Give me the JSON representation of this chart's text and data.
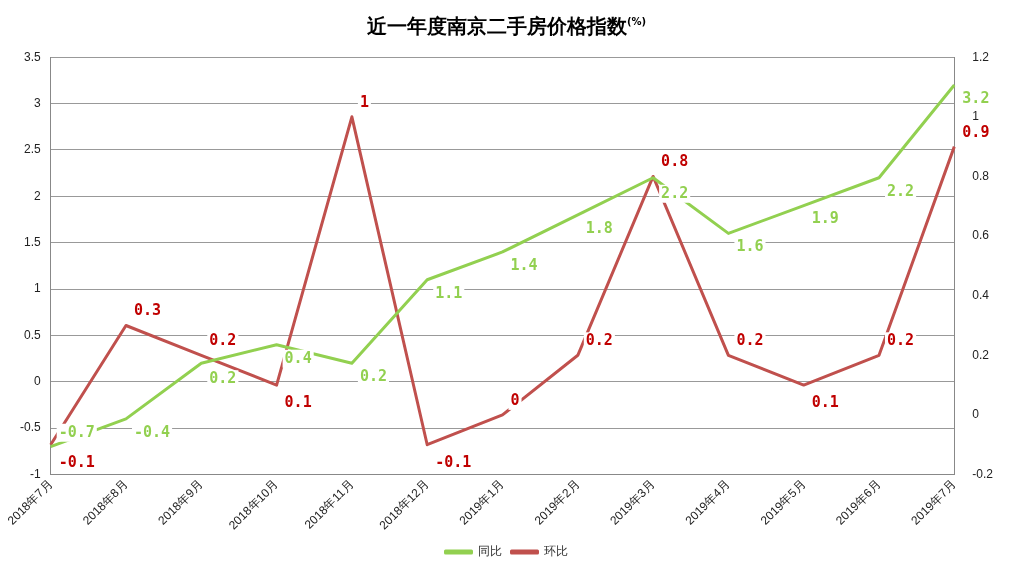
{
  "chart_data": {
    "type": "line",
    "title": "近一年度南京二手房价格指数$^{(%)}$",
    "categories": [
      "2018年7月",
      "2018年8月",
      "2018年9月",
      "2018年10月",
      "2018年11月",
      "2018年12月",
      "2019年1月",
      "2019年2月",
      "2019年3月",
      "2019年4月",
      "2019年5月",
      "2019年6月",
      "2019年7月"
    ],
    "series": [
      {
        "name": "同比",
        "color": "#92d050",
        "values": [
          -0.7,
          -0.4,
          0.2,
          0.4,
          0.2,
          1.1,
          1.4,
          1.8,
          2.2,
          1.6,
          1.9,
          2.2,
          3.2
        ]
      },
      {
        "name": "环比",
        "color": "#c0504d",
        "axis": "y2",
        "values": [
          -0.1,
          0.3,
          0.2,
          0.1,
          1,
          -0.1,
          0,
          0.2,
          0.8,
          0.2,
          0.1,
          0.2,
          0.9
        ]
      }
    ],
    "ylim": [
      -1,
      3.5
    ],
    "yticks": [
      -1,
      -0.5,
      0,
      0.5,
      1,
      1.5,
      2,
      2.5,
      3,
      3.5
    ],
    "y2lim": [
      -0.2,
      1.2
    ],
    "y2ticks": [
      -0.2,
      0,
      0.2,
      0.4,
      0.6,
      0.8,
      1,
      1.2
    ],
    "grid": "y",
    "legend": "bottom",
    "marker": "none",
    "line_style": "solid",
    "data_labels": true
  }
}
